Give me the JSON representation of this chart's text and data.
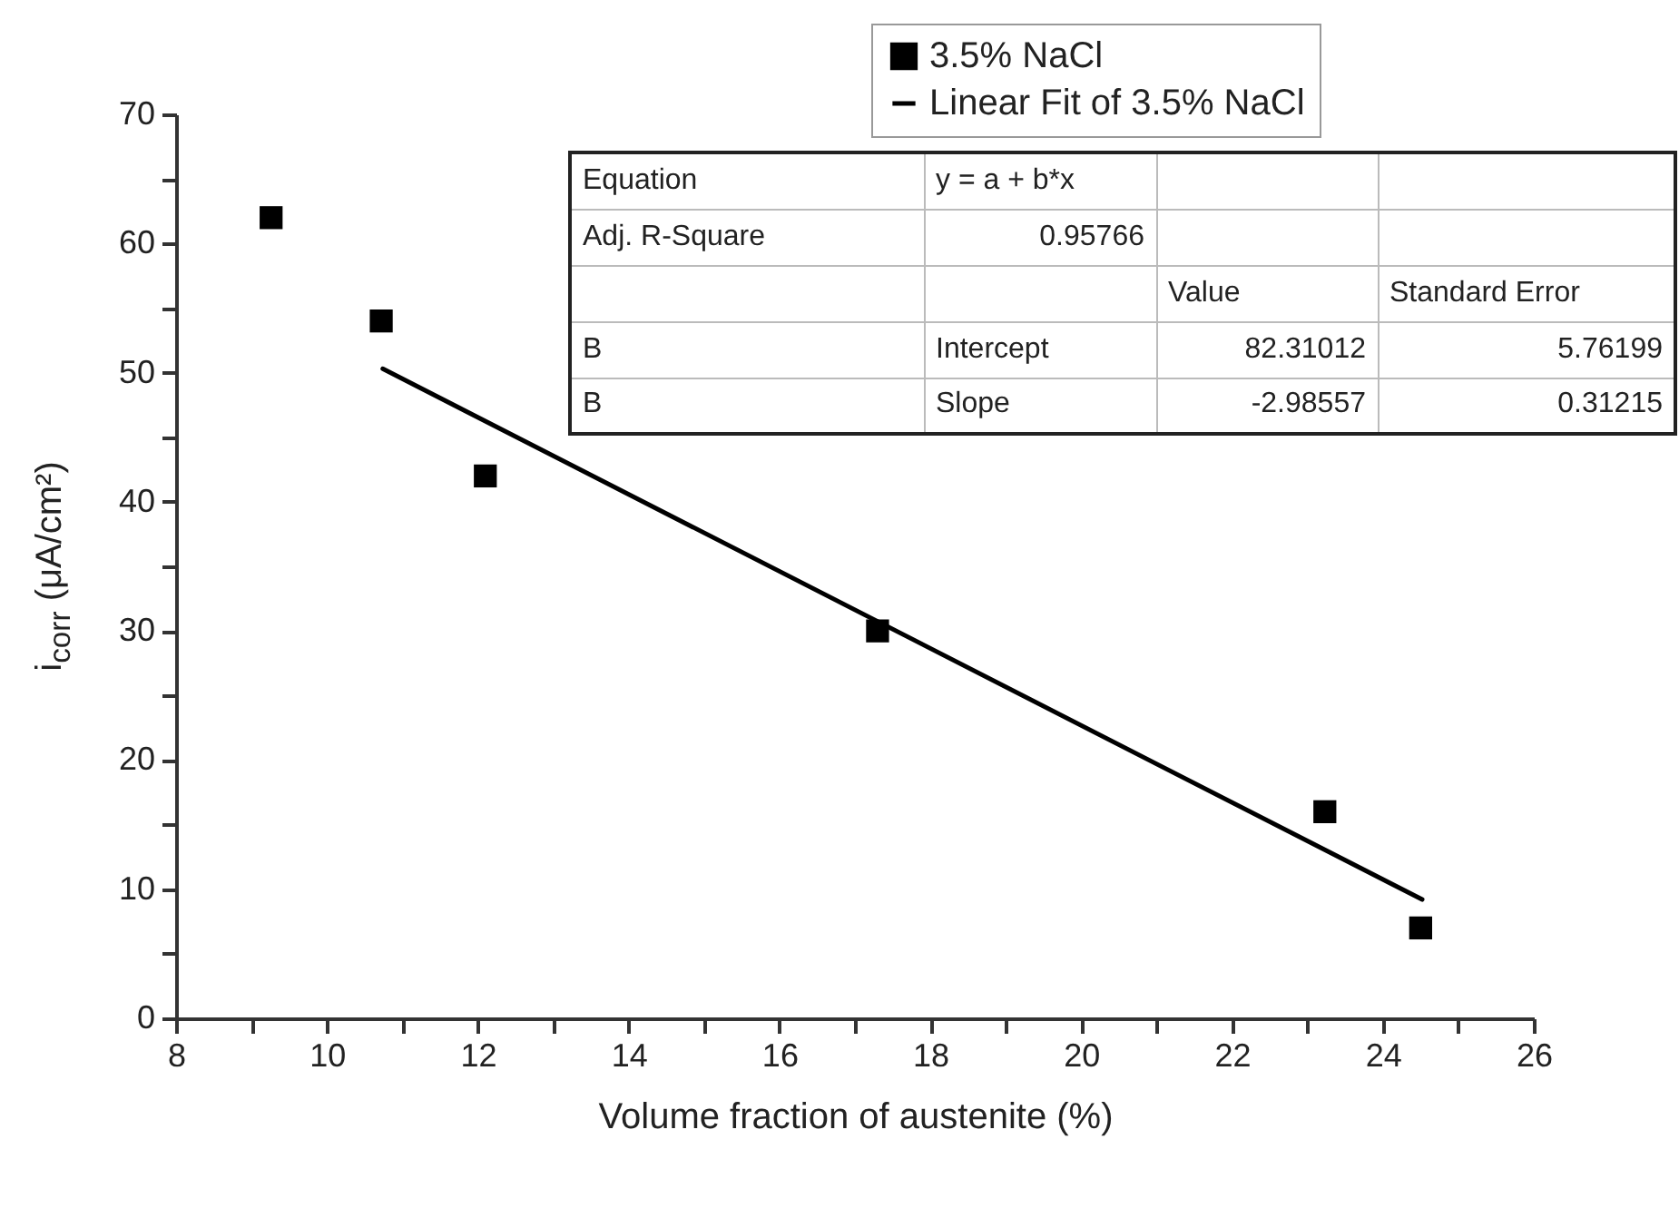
{
  "chart_data": {
    "type": "scatter",
    "xlabel": "Volume fraction of austenite (%)",
    "ylabel": "i$_{corr}$ (μA/cm²)",
    "xlim": [
      8,
      26
    ],
    "xticks": [
      8,
      {
        "value": 9,
        "label": null
      },
      10,
      {
        "value": 11,
        "label": null
      },
      12,
      {
        "value": 13,
        "label": null
      },
      14,
      {
        "value": 15,
        "label": null
      },
      16,
      {
        "value": 17,
        "label": null
      },
      18,
      {
        "value": 19,
        "label": null
      },
      20,
      {
        "value": 21,
        "label": null
      },
      22,
      {
        "value": 23,
        "label": null
      },
      24,
      {
        "value": 25,
        "label": null
      },
      26
    ],
    "ylim": [
      0,
      70
    ],
    "yticks": [
      0,
      {
        "value": 5,
        "label": null
      },
      10,
      {
        "value": 15,
        "label": null
      },
      20,
      {
        "value": 25,
        "label": null
      },
      30,
      {
        "value": 35,
        "label": null
      },
      40,
      {
        "value": 45,
        "label": null
      },
      50,
      {
        "value": 55,
        "label": null
      },
      60,
      {
        "value": 65,
        "label": null
      },
      70
    ],
    "marker": "square",
    "legend": "top right",
    "series": [
      {
        "name": "3.5% NaCl",
        "color": "#000000",
        "x": [
          9.26,
          10.72,
          12.1,
          17.3,
          23.23,
          24.5
        ],
        "values": [
          62,
          54,
          42,
          30,
          16,
          7
        ]
      },
      {
        "name": "Linear Fit of 3.5% NaCl",
        "type": "line",
        "marker": "none",
        "color": "#000000",
        "x": [
          10.74,
          24.52
        ],
        "values": [
          50.3,
          9.2
        ]
      }
    ],
    "annotations": [
      "Equation",
      "y = a + b*x",
      "Adj. R-Square",
      "0.95766",
      "Value",
      "Standard Error",
      "B",
      "Intercept",
      "82.31012",
      "5.76199",
      "B",
      "Slope",
      "-2.98557",
      "0.31215"
    ]
  }
}
